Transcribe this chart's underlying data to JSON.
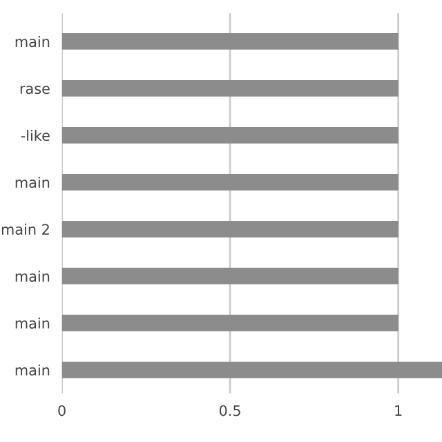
{
  "chart_data": {
    "type": "bar",
    "orientation": "horizontal",
    "categories": [
      "main",
      "rase",
      "-like",
      "main",
      "main 2",
      "main",
      "main",
      "main"
    ],
    "values": [
      1,
      1,
      1,
      1,
      1,
      1,
      1,
      1.13
    ],
    "color": "#8c8c8c",
    "xlim": [
      0,
      1.13
    ],
    "xticks": [
      0,
      0.5,
      1
    ],
    "grid": "x",
    "legend": false
  }
}
